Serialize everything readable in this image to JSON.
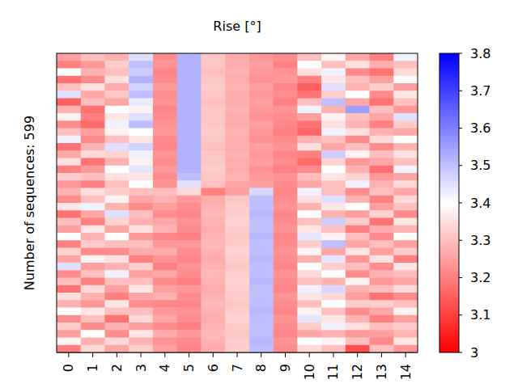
{
  "chart_data": {
    "type": "heatmap",
    "title": "Rise [°]",
    "y_label": "Number of sequences: 599",
    "x": [
      0,
      1,
      2,
      3,
      4,
      5,
      6,
      7,
      8,
      9,
      10,
      11,
      12,
      13,
      14
    ],
    "xlim": [
      -0.5,
      14.5
    ],
    "xticks": [
      0,
      1,
      2,
      3,
      4,
      5,
      6,
      7,
      8,
      9,
      10,
      11,
      12,
      13,
      14
    ],
    "tick_labels": "x",
    "colorbar": {
      "range": [
        3,
        3.8
      ],
      "ticks": [
        3,
        3.1,
        3.2,
        3.3,
        3.4,
        3.5,
        3.6,
        3.7,
        3.8
      ]
    },
    "cells": [
      [
        3.25,
        3.3,
        3.28,
        3.45,
        3.22,
        3.52,
        3.31,
        3.27,
        3.24,
        3.22,
        3.3,
        3.38,
        3.26,
        3.2,
        3.42
      ],
      [
        3.2,
        3.24,
        3.32,
        3.5,
        3.23,
        3.52,
        3.31,
        3.27,
        3.25,
        3.2,
        3.4,
        3.3,
        3.35,
        3.27,
        3.3
      ],
      [
        3.4,
        3.28,
        3.3,
        3.48,
        3.21,
        3.52,
        3.3,
        3.28,
        3.24,
        3.23,
        3.35,
        3.42,
        3.22,
        3.18,
        3.34
      ],
      [
        3.18,
        3.22,
        3.35,
        3.52,
        3.22,
        3.52,
        3.31,
        3.27,
        3.23,
        3.24,
        3.2,
        3.36,
        3.3,
        3.25,
        3.4
      ],
      [
        3.3,
        3.35,
        3.27,
        3.47,
        3.24,
        3.52,
        3.32,
        3.28,
        3.25,
        3.21,
        3.15,
        3.45,
        3.28,
        3.32,
        3.25
      ],
      [
        3.45,
        3.26,
        3.31,
        3.5,
        3.22,
        3.52,
        3.31,
        3.27,
        3.24,
        3.22,
        3.18,
        3.32,
        3.4,
        3.22,
        3.36
      ],
      [
        3.15,
        3.3,
        3.26,
        3.43,
        3.23,
        3.52,
        3.3,
        3.27,
        3.25,
        3.2,
        3.3,
        3.5,
        3.26,
        3.18,
        3.3
      ],
      [
        3.28,
        3.18,
        3.4,
        3.38,
        3.21,
        3.52,
        3.31,
        3.28,
        3.24,
        3.23,
        3.42,
        3.28,
        3.55,
        3.3,
        3.24
      ],
      [
        3.38,
        3.2,
        3.36,
        3.45,
        3.22,
        3.52,
        3.31,
        3.27,
        3.23,
        3.22,
        3.25,
        3.38,
        3.3,
        3.26,
        3.45
      ],
      [
        3.22,
        3.17,
        3.42,
        3.5,
        3.23,
        3.52,
        3.31,
        3.27,
        3.25,
        3.21,
        3.18,
        3.35,
        3.28,
        3.2,
        3.32
      ],
      [
        3.3,
        3.25,
        3.38,
        3.4,
        3.24,
        3.52,
        3.32,
        3.28,
        3.24,
        3.2,
        3.16,
        3.42,
        3.35,
        3.28,
        3.26
      ],
      [
        3.42,
        3.22,
        3.3,
        3.36,
        3.22,
        3.52,
        3.31,
        3.27,
        3.23,
        3.22,
        3.28,
        3.3,
        3.22,
        3.34,
        3.4
      ],
      [
        3.18,
        3.28,
        3.45,
        3.47,
        3.21,
        3.52,
        3.3,
        3.27,
        3.25,
        3.23,
        3.35,
        3.26,
        3.3,
        3.22,
        3.28
      ],
      [
        3.26,
        3.34,
        3.33,
        3.42,
        3.23,
        3.52,
        3.31,
        3.28,
        3.24,
        3.21,
        3.2,
        3.48,
        3.38,
        3.3,
        3.35
      ],
      [
        3.35,
        3.18,
        3.28,
        3.38,
        3.22,
        3.52,
        3.31,
        3.27,
        3.25,
        3.22,
        3.17,
        3.33,
        3.24,
        3.26,
        3.3
      ],
      [
        3.2,
        3.24,
        3.4,
        3.44,
        3.24,
        3.52,
        3.32,
        3.27,
        3.23,
        3.2,
        3.22,
        3.4,
        3.28,
        3.18,
        3.42
      ],
      [
        3.32,
        3.3,
        3.35,
        3.36,
        3.22,
        3.5,
        3.31,
        3.28,
        3.24,
        3.23,
        3.3,
        3.36,
        3.33,
        3.24,
        3.26
      ],
      [
        3.24,
        3.2,
        3.3,
        3.4,
        3.23,
        3.45,
        3.3,
        3.26,
        3.25,
        3.22,
        3.26,
        3.3,
        3.42,
        3.28,
        3.34
      ],
      [
        3.28,
        3.35,
        3.32,
        3.3,
        3.3,
        3.34,
        3.2,
        3.25,
        3.46,
        3.21,
        3.42,
        3.3,
        3.22,
        3.3,
        3.26
      ],
      [
        3.22,
        3.3,
        3.38,
        3.26,
        3.28,
        3.24,
        3.27,
        3.31,
        3.5,
        3.22,
        3.35,
        3.45,
        3.28,
        3.2,
        3.34
      ],
      [
        3.36,
        3.42,
        3.28,
        3.22,
        3.25,
        3.22,
        3.28,
        3.32,
        3.5,
        3.23,
        3.28,
        3.36,
        3.4,
        3.25,
        3.3
      ],
      [
        3.18,
        3.26,
        3.45,
        3.3,
        3.22,
        3.21,
        3.29,
        3.32,
        3.51,
        3.21,
        3.4,
        3.28,
        3.25,
        3.33,
        3.22
      ],
      [
        3.3,
        3.2,
        3.33,
        3.28,
        3.26,
        3.23,
        3.28,
        3.33,
        3.5,
        3.22,
        3.3,
        3.48,
        3.32,
        3.18,
        3.36
      ],
      [
        3.25,
        3.36,
        3.26,
        3.35,
        3.28,
        3.22,
        3.27,
        3.32,
        3.5,
        3.23,
        3.36,
        3.3,
        3.2,
        3.27,
        3.28
      ],
      [
        3.4,
        3.28,
        3.4,
        3.24,
        3.21,
        3.2,
        3.28,
        3.31,
        3.51,
        3.21,
        3.44,
        3.38,
        3.3,
        3.22,
        3.4
      ],
      [
        3.2,
        3.32,
        3.3,
        3.3,
        3.24,
        3.24,
        3.29,
        3.32,
        3.5,
        3.22,
        3.32,
        3.5,
        3.26,
        3.3,
        3.25
      ],
      [
        3.33,
        3.22,
        3.22,
        3.27,
        3.27,
        3.22,
        3.28,
        3.33,
        3.5,
        3.23,
        3.38,
        3.26,
        3.36,
        3.25,
        3.32
      ],
      [
        3.26,
        3.38,
        3.35,
        3.2,
        3.23,
        3.21,
        3.27,
        3.32,
        3.51,
        3.22,
        3.28,
        3.44,
        3.24,
        3.35,
        3.2
      ],
      [
        3.45,
        3.25,
        3.28,
        3.32,
        3.2,
        3.23,
        3.28,
        3.31,
        3.5,
        3.21,
        3.4,
        3.32,
        3.3,
        3.22,
        3.36
      ],
      [
        3.22,
        3.3,
        3.42,
        3.25,
        3.26,
        3.22,
        3.29,
        3.32,
        3.5,
        3.23,
        3.34,
        3.4,
        3.22,
        3.28,
        3.3
      ],
      [
        3.3,
        3.2,
        3.3,
        3.3,
        3.22,
        3.2,
        3.28,
        3.33,
        3.51,
        3.22,
        3.3,
        3.28,
        3.38,
        3.24,
        3.26
      ],
      [
        3.18,
        3.34,
        3.25,
        3.36,
        3.25,
        3.24,
        3.27,
        3.32,
        3.5,
        3.21,
        3.42,
        3.46,
        3.28,
        3.3,
        3.34
      ],
      [
        3.35,
        3.28,
        3.2,
        3.26,
        3.28,
        3.22,
        3.28,
        3.32,
        3.5,
        3.23,
        3.36,
        3.34,
        3.25,
        3.18,
        3.22
      ],
      [
        3.28,
        3.24,
        3.36,
        3.22,
        3.21,
        3.21,
        3.29,
        3.31,
        3.5,
        3.22,
        3.3,
        3.4,
        3.32,
        3.32,
        3.3
      ],
      [
        3.4,
        3.36,
        3.3,
        3.3,
        3.24,
        3.23,
        3.28,
        3.32,
        3.51,
        3.21,
        3.38,
        3.3,
        3.22,
        3.26,
        3.38
      ],
      [
        3.22,
        3.3,
        3.18,
        3.34,
        3.26,
        3.22,
        3.27,
        3.33,
        3.5,
        3.23,
        3.44,
        3.36,
        3.28,
        3.2,
        3.25
      ],
      [
        3.32,
        3.22,
        3.28,
        3.25,
        3.22,
        3.2,
        3.28,
        3.32,
        3.5,
        3.22,
        3.32,
        3.42,
        3.35,
        3.3,
        3.32
      ],
      [
        3.25,
        3.4,
        3.22,
        3.36,
        3.27,
        3.24,
        3.29,
        3.31,
        3.5,
        3.21,
        3.26,
        3.28,
        3.24,
        3.25,
        3.28
      ],
      [
        3.38,
        3.28,
        3.34,
        3.28,
        3.23,
        3.22,
        3.28,
        3.32,
        3.51,
        3.23,
        3.4,
        3.38,
        3.3,
        3.22,
        3.36
      ],
      [
        3.2,
        3.34,
        3.26,
        3.32,
        3.25,
        3.21,
        3.27,
        3.32,
        3.5,
        3.22,
        3.34,
        3.3,
        3.12,
        3.3,
        3.24
      ]
    ]
  }
}
